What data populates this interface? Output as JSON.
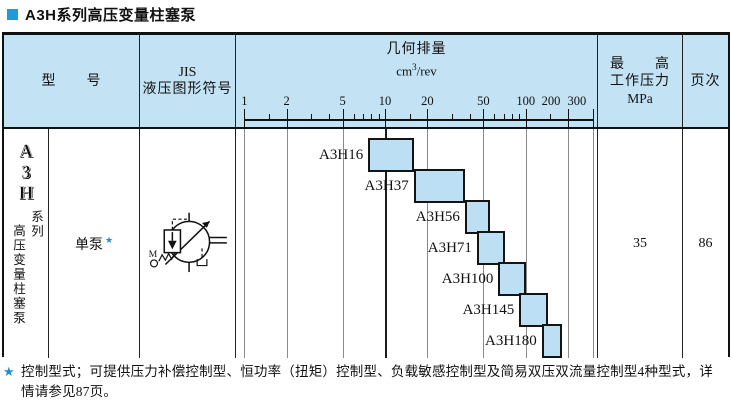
{
  "title": {
    "text": "A3H系列高压变量柱塞泵",
    "bullet_color": "#1E9CD8"
  },
  "colors": {
    "header_bg": "#C3E2F4",
    "bar_fill": "#BCDFF4",
    "bar_border": "#141414",
    "grid": "#8A8A8A",
    "grid_dark": "#1B1B1B",
    "accent_blue": "#1E8FD5"
  },
  "table": {
    "headers": {
      "model": "型　　号",
      "jis_line1": "JIS",
      "jis_line2": "液压图形符号",
      "displacement_title": "几何排量",
      "displacement_unit_base": "cm",
      "displacement_unit_sup": "3",
      "displacement_unit_tail": "/rev",
      "pressure_line1": "最　　高",
      "pressure_line2": "工作压力",
      "pressure_line3": "MPa",
      "page": "页次"
    },
    "series_cell": {
      "logo": "A3H",
      "suffix": "系列",
      "name": "高压变量柱塞泵"
    },
    "pump_type": {
      "label": "单泵",
      "star": "★"
    },
    "pressure_value": "35",
    "page_value": "86"
  },
  "chart_data": {
    "type": "bar",
    "subtype": "horizontal-range-bars",
    "title": "几何排量 cm³/rev",
    "axis": {
      "scale": "log",
      "range": [
        1,
        300
      ],
      "major_ticks": [
        1,
        2,
        5,
        10,
        20,
        50,
        100,
        200,
        300
      ],
      "minor_ticks": [
        1.5,
        3,
        4,
        6,
        7,
        8,
        9,
        15,
        30,
        40,
        60,
        70,
        80,
        90,
        150
      ],
      "emphasized_gridline": 10
    },
    "bars": [
      {
        "label": "A3H16",
        "min": 7.6,
        "max": 16
      },
      {
        "label": "A3H37",
        "min": 16,
        "max": 37
      },
      {
        "label": "A3H56",
        "min": 37,
        "max": 56
      },
      {
        "label": "A3H71",
        "min": 45,
        "max": 71
      },
      {
        "label": "A3H100",
        "min": 64,
        "max": 100
      },
      {
        "label": "A3H145",
        "min": 90,
        "max": 145
      },
      {
        "label": "A3H180",
        "min": 130,
        "max": 180
      }
    ]
  },
  "footnote": {
    "star": "★",
    "text": "控制型式；可提供压力补偿控制型、恒功率（扭矩）控制型、负载敏感控制型及简易双压双流量控制型4种型式，详情请参见87页。"
  }
}
